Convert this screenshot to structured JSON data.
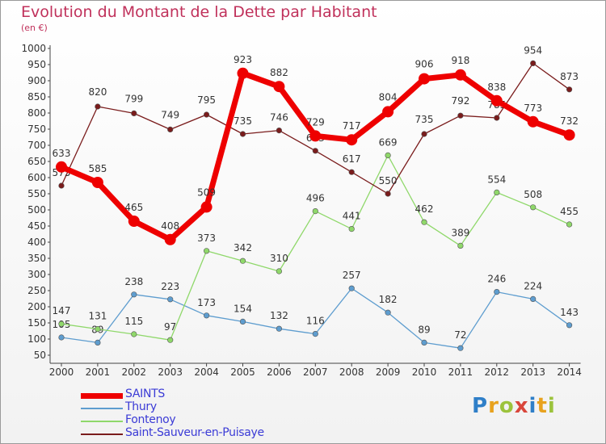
{
  "header": {
    "title": "Evolution du Montant de la Dette par Habitant",
    "subtitle": "(en €)"
  },
  "logo": {
    "text": "Proxiti",
    "colors": [
      "#2f7fc8",
      "#e8a21e",
      "#9cc33c",
      "#d9463b",
      "#2f7fc8",
      "#e8a21e",
      "#9cc33c"
    ]
  },
  "chart_data": {
    "type": "line",
    "title": "Evolution du Montant de la Dette par Habitant",
    "subtitle": "(en €)",
    "x": [
      "2000",
      "2001",
      "2002",
      "2003",
      "2004",
      "2005",
      "2006",
      "2007",
      "2008",
      "2009",
      "2010",
      "2011",
      "2012",
      "2013",
      "2014"
    ],
    "ylim": [
      50,
      1000
    ],
    "yticks": [
      50,
      100,
      150,
      200,
      250,
      300,
      350,
      400,
      450,
      500,
      550,
      600,
      650,
      700,
      750,
      800,
      850,
      900,
      950,
      1000
    ],
    "grid": false,
    "legend_position": "bottom-left",
    "series": [
      {
        "name": "SAINTS",
        "color": "#ee0000",
        "values": [
          633,
          585,
          465,
          408,
          509,
          923,
          882,
          729,
          717,
          804,
          906,
          918,
          838,
          773,
          732
        ]
      },
      {
        "name": "Thury",
        "color": "#5e9dcf",
        "values": [
          105,
          89,
          238,
          223,
          173,
          154,
          132,
          116,
          257,
          182,
          89,
          72,
          246,
          224,
          143
        ]
      },
      {
        "name": "Fontenoy",
        "color": "#8fd86a",
        "values": [
          147,
          131,
          115,
          97,
          373,
          342,
          310,
          496,
          441,
          669,
          462,
          389,
          554,
          508,
          455
        ]
      },
      {
        "name": "Saint-Sauveur-en-Puisaye",
        "color": "#7a1c1c",
        "values": [
          575,
          820,
          799,
          749,
          795,
          735,
          746,
          683,
          617,
          550,
          735,
          792,
          785,
          954,
          873
        ]
      }
    ]
  }
}
